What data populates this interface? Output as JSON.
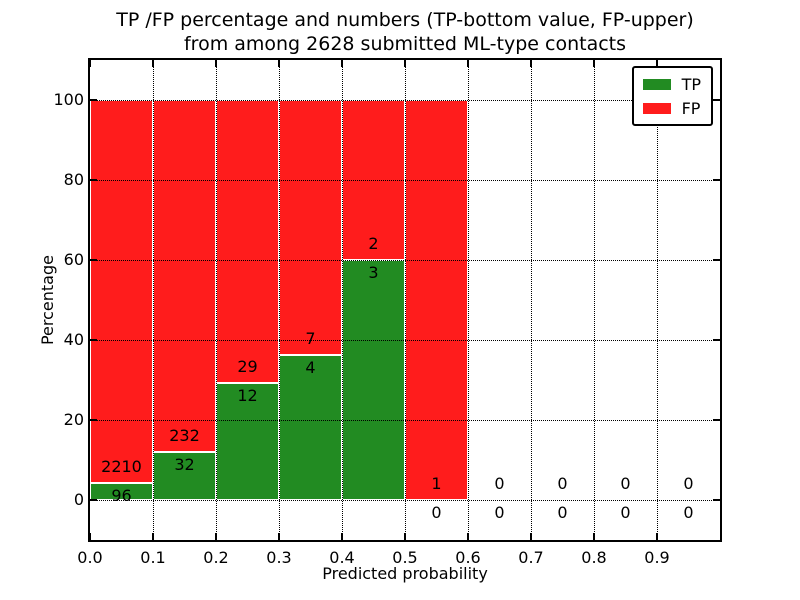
{
  "figure": {
    "title_line1": "TP /FP percentage and numbers (TP-bottom value, FP-upper)",
    "title_line2": "from among 2628 submitted ML-type contacts",
    "xlabel": "Predicted probability",
    "ylabel": "Percentage"
  },
  "legend": {
    "position": "upper right",
    "items": [
      {
        "label": "TP",
        "color": "#228b22"
      },
      {
        "label": "FP",
        "color": "#ff1c1c"
      }
    ]
  },
  "chart_data": {
    "type": "bar",
    "stacked": true,
    "title": "TP /FP percentage and numbers (TP-bottom value, FP-upper) from among 2628 submitted ML-type contacts",
    "xlabel": "Predicted probability",
    "ylabel": "Percentage",
    "xlim": [
      0.0,
      1.0
    ],
    "ylim": [
      -10,
      110
    ],
    "xticks": [
      0.0,
      0.1,
      0.2,
      0.3,
      0.4,
      0.5,
      0.6,
      0.7,
      0.8,
      0.9
    ],
    "yticks": [
      0,
      20,
      40,
      60,
      80,
      100
    ],
    "grid": true,
    "grid_style": "dotted",
    "bin_width": 0.1,
    "bin_starts": [
      0.0,
      0.1,
      0.2,
      0.3,
      0.4,
      0.5,
      0.6,
      0.7,
      0.8,
      0.9
    ],
    "bar_unit": "percent_of_bin_total",
    "total_contacts": 2628,
    "series": [
      {
        "name": "TP",
        "color": "#228b22",
        "counts": [
          96,
          32,
          12,
          4,
          3,
          0,
          0,
          0,
          0,
          0
        ]
      },
      {
        "name": "FP",
        "color": "#ff1c1c",
        "counts": [
          2210,
          232,
          29,
          7,
          2,
          1,
          0,
          0,
          0,
          0
        ]
      }
    ],
    "tp_percent": [
      4.2,
      12.1,
      29.3,
      36.4,
      60.0,
      0.0,
      null,
      null,
      null,
      null
    ],
    "legend_position": "upper right"
  }
}
